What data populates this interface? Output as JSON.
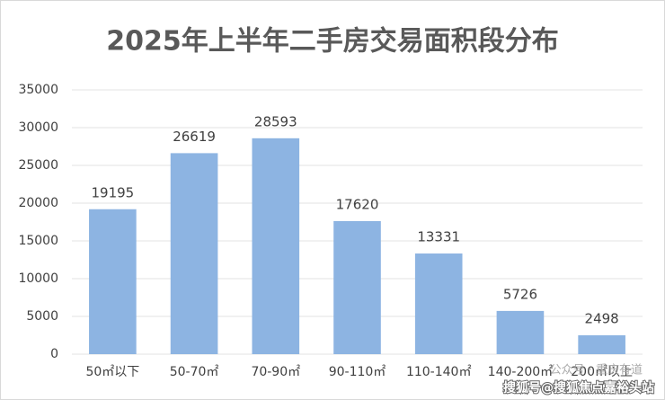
{
  "chart_data": {
    "type": "bar",
    "title": "2025年上半年二手房交易面积段分布",
    "categories": [
      "50㎡以下",
      "50-70㎡",
      "70-90㎡",
      "90-110㎡",
      "110-140㎡",
      "140-200㎡",
      "200㎡以上"
    ],
    "values": [
      19195,
      26619,
      28593,
      17620,
      13331,
      5726,
      2498
    ],
    "color": "#8db4e2",
    "ylim": [
      0,
      35000
    ],
    "yticks": [
      0,
      5000,
      10000,
      15000,
      20000,
      25000,
      30000,
      35000
    ],
    "grid": true,
    "annotations": [
      "公众号 · 重庆有道",
      "搜狐号@搜狐焦点嘉裕头站"
    ]
  }
}
